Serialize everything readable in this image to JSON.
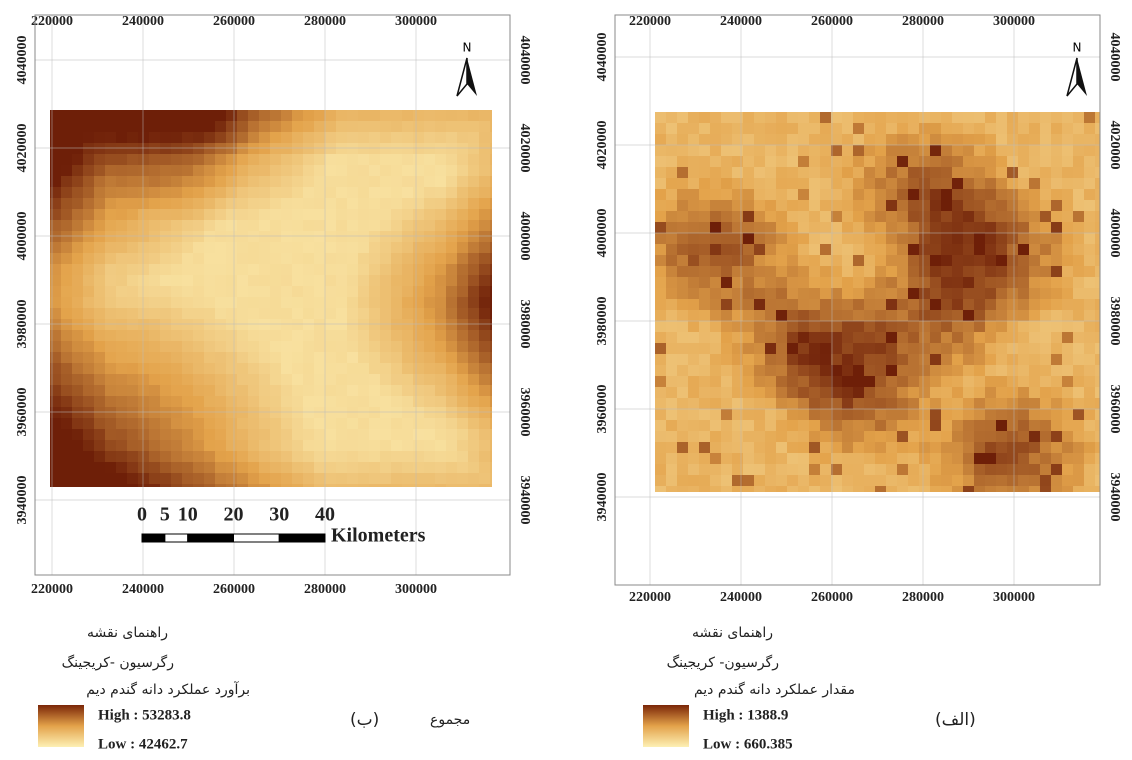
{
  "panels": [
    {
      "xticks": [
        220000,
        240000,
        260000,
        280000,
        300000
      ],
      "yticks": [
        3940000,
        3960000,
        3980000,
        4000000,
        4020000,
        4040000
      ],
      "north": "N",
      "scale_bar": {
        "labels": [
          0,
          5,
          10,
          20,
          30,
          40
        ],
        "unit": "Kilometers"
      },
      "legend": {
        "title": "راهنمای نقشه",
        "method": "رگرسیون -کریجینگ",
        "variable": "برآورد عملکرد دانه گندم دیم",
        "high": "High : 53283.8",
        "low": "Low : 42462.7"
      },
      "note": "مجموع",
      "caption": "(ب)"
    },
    {
      "xticks": [
        220000,
        240000,
        260000,
        280000,
        300000
      ],
      "yticks": [
        3940000,
        3960000,
        3980000,
        4000000,
        4020000,
        4040000
      ],
      "north": "N",
      "legend": {
        "title": "راهنمای نقشه",
        "method": "رگرسیون- کریجینگ",
        "variable": "مقدار عملکرد دانه گندم دیم",
        "high": "High : 1388.9",
        "low": "Low : 660.385"
      },
      "caption": "(الف)"
    }
  ]
}
